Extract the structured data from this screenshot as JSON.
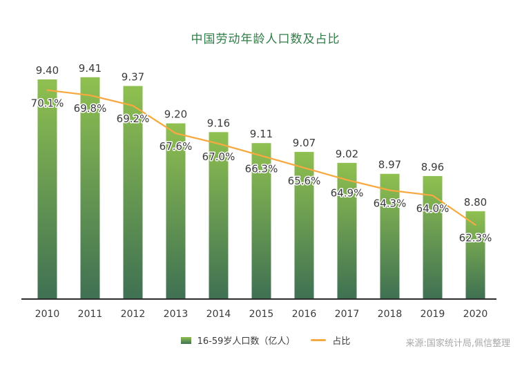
{
  "title": "中国劳动年龄人口数及占比",
  "source": "来源:国家统计局,佩信整理",
  "legend": {
    "bar_label": "16-59岁人口数（亿人）",
    "line_label": "占比"
  },
  "colors": {
    "title": "#2f7d46",
    "bar_top": "#8fc050",
    "bar_bottom": "#3f7153",
    "line": "#f7a941",
    "label": "#3a3a3a",
    "axis": "#2b2b2b",
    "source": "#a8a8a8"
  },
  "chart_data": {
    "type": "bar",
    "title": "中国劳动年龄人口数及占比",
    "xlabel": "",
    "ylabel": "",
    "grid": false,
    "legend_position": "bottom",
    "categories": [
      "2010",
      "2011",
      "2012",
      "2013",
      "2014",
      "2015",
      "2016",
      "2017",
      "2018",
      "2019",
      "2020"
    ],
    "series": [
      {
        "name": "16-59岁人口数（亿人）",
        "type": "bar",
        "values": [
          9.4,
          9.41,
          9.37,
          9.2,
          9.16,
          9.11,
          9.07,
          9.02,
          8.97,
          8.96,
          8.8
        ],
        "value_labels": [
          "9.40",
          "9.41",
          "9.37",
          "9.20",
          "9.16",
          "9.11",
          "9.07",
          "9.02",
          "8.97",
          "8.96",
          "8.80"
        ]
      },
      {
        "name": "占比",
        "type": "line",
        "unit": "%",
        "values": [
          70.1,
          69.8,
          69.2,
          67.6,
          67.0,
          66.3,
          65.6,
          64.9,
          64.3,
          64.0,
          62.3
        ],
        "value_labels": [
          "70.1%",
          "69.8%",
          "69.2%",
          "67.6%",
          "67.0%",
          "66.3%",
          "65.6%",
          "64.9%",
          "64.3%",
          "64.0%",
          "62.3%"
        ]
      }
    ],
    "bar_axis_range": [
      8.4,
      9.5
    ],
    "line_axis_range": [
      58.0,
      75.0
    ]
  }
}
